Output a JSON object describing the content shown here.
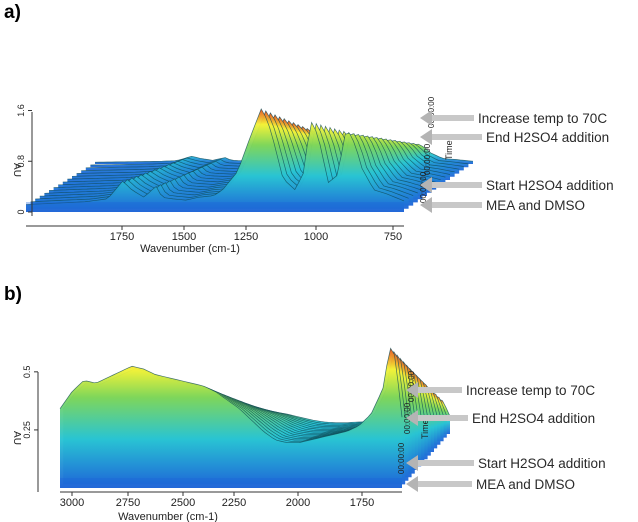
{
  "chart_data": [
    {
      "panel_label": "a)",
      "type": "area",
      "xlabel": "Wavenumber (cm-1)",
      "ylabel": "AU",
      "zlabel": "Time",
      "x_ticks": [
        "1750",
        "1500",
        "1250",
        "1000",
        "750"
      ],
      "y_ticks": [
        "0",
        "0.8",
        "1.6"
      ],
      "time_ticks": [
        "00:00:00",
        "00:00:00",
        "00:00:00"
      ],
      "xlim": [
        1950,
        700
      ],
      "ylim": [
        0,
        1.6
      ],
      "grid": false,
      "annotations": [
        "Increase temp to 70C",
        "End H2SO4 addition",
        "Start H2SO4 addition",
        "MEA and DMSO"
      ],
      "series": [
        {
          "x": [
            1950,
            1850,
            1750,
            1680,
            1630,
            1600,
            1560,
            1520,
            1500,
            1470,
            1420,
            1380,
            1330,
            1300,
            1250,
            1210,
            1170,
            1140,
            1100,
            1060,
            1030,
            1010,
            985,
            950,
            920,
            890,
            860,
            840,
            800,
            760,
            730,
            700
          ],
          "values": [
            0.1,
            0.12,
            0.14,
            0.18,
            0.42,
            0.3,
            0.2,
            0.35,
            0.2,
            0.18,
            0.16,
            0.2,
            0.22,
            0.3,
            0.55,
            1.0,
            1.42,
            1.1,
            0.45,
            0.3,
            0.55,
            1.25,
            1.05,
            0.4,
            0.5,
            1.15,
            0.9,
            0.6,
            0.3,
            0.25,
            0.2,
            0.15
          ]
        }
      ],
      "colors": {
        "low": "#29c4d3",
        "mid": "#f3f238",
        "high": "#e8501c",
        "base": "#1e64d8",
        "line": "#0d4a55"
      }
    },
    {
      "panel_label": "b)",
      "type": "area",
      "xlabel": "Wavenumber (cm-1)",
      "ylabel": "AU",
      "zlabel": "Time",
      "x_ticks": [
        "3000",
        "2750",
        "2500",
        "2250",
        "2000",
        "1750"
      ],
      "y_ticks": [
        "0.25",
        "0.5"
      ],
      "time_ticks": [
        "00:00:00",
        "00:00:00",
        "00:00:00"
      ],
      "xlim": [
        3050,
        1620
      ],
      "ylim": [
        0,
        0.6
      ],
      "grid": false,
      "annotations": [
        "Increase temp to 70C",
        "End H2SO4 addition",
        "Start H2SO4 addition",
        "MEA and DMSO"
      ],
      "series": [
        {
          "x": [
            3050,
            3000,
            2950,
            2900,
            2850,
            2800,
            2750,
            2700,
            2650,
            2600,
            2550,
            2500,
            2450,
            2400,
            2350,
            2300,
            2250,
            2200,
            2150,
            2100,
            2050,
            2000,
            1950,
            1900,
            1850,
            1800,
            1750,
            1700,
            1680,
            1660,
            1640,
            1620
          ],
          "values": [
            0.28,
            0.34,
            0.38,
            0.37,
            0.39,
            0.41,
            0.43,
            0.42,
            0.4,
            0.39,
            0.38,
            0.37,
            0.36,
            0.34,
            0.31,
            0.28,
            0.24,
            0.2,
            0.17,
            0.16,
            0.16,
            0.17,
            0.18,
            0.19,
            0.2,
            0.22,
            0.26,
            0.35,
            0.45,
            0.52,
            0.4,
            0.25
          ]
        }
      ],
      "colors": {
        "low": "#29c4d3",
        "mid": "#f3f238",
        "high": "#e8501c",
        "base": "#1e64d8",
        "line": "#0d4a55"
      }
    }
  ]
}
